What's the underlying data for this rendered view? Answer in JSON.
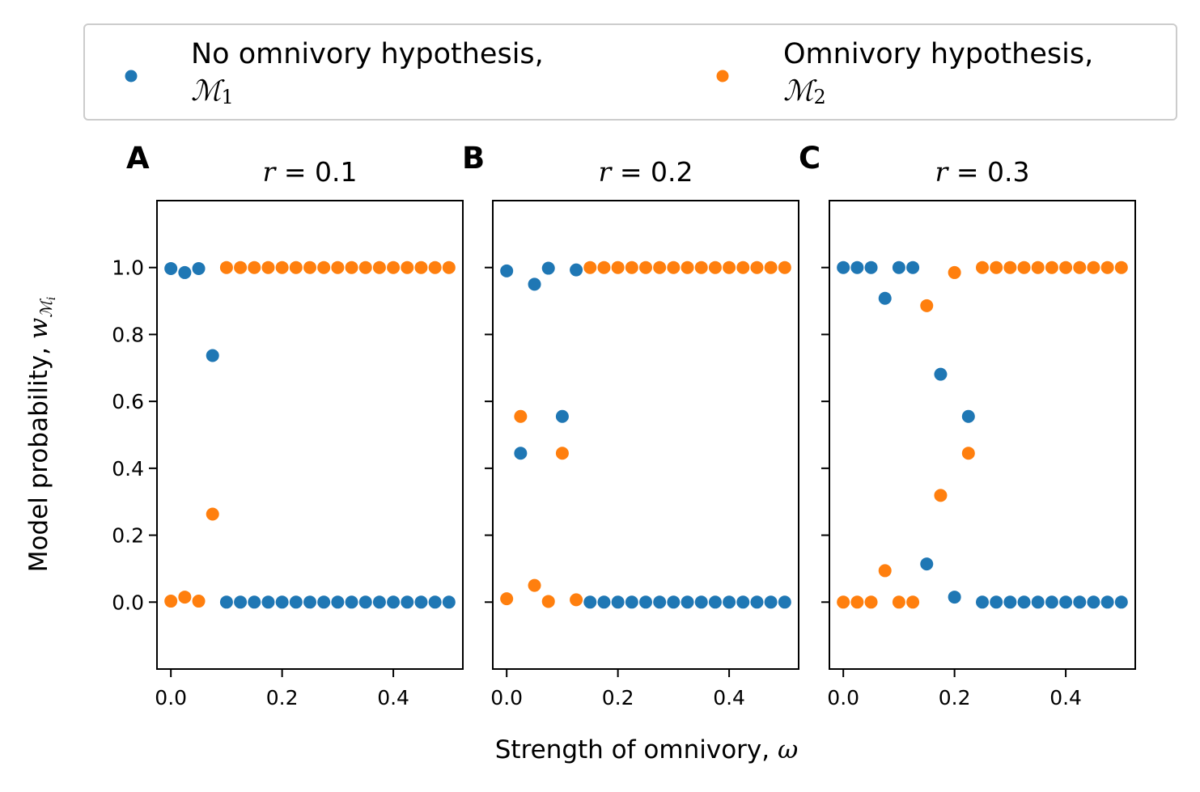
{
  "colors": {
    "m1": "#1f77b4",
    "m2": "#ff7f0e"
  },
  "legend": {
    "placement": "top",
    "entries": [
      {
        "line1": "No omnivory hypothesis,",
        "line2": "ℳ",
        "sub": "1",
        "series": "m1"
      },
      {
        "line1": "Omnivory hypothesis,",
        "line2": "ℳ",
        "sub": "2",
        "series": "m2"
      }
    ]
  },
  "xlabel": {
    "text": "Strength of omnivory, ",
    "symbol": "ω"
  },
  "ylabel": {
    "text": "Model probability, ",
    "symbol": "w",
    "sub": "ℳ",
    "subsub": "i"
  },
  "chart_data": [
    {
      "type": "scatter",
      "panel": "A",
      "title": {
        "lhs": "r",
        "rhs": " = 0.1"
      },
      "xlim": [
        -0.025,
        0.525
      ],
      "ylim": [
        -0.2,
        1.2
      ],
      "x_ticks": [
        "0.0",
        "0.2",
        "0.4"
      ],
      "y_ticks": [
        "0.0",
        "0.2",
        "0.4",
        "0.6",
        "0.8",
        "1.0"
      ],
      "x": [
        0.0,
        0.025,
        0.05,
        0.075,
        0.1,
        0.125,
        0.15,
        0.175,
        0.2,
        0.225,
        0.25,
        0.275,
        0.3,
        0.325,
        0.35,
        0.375,
        0.4,
        0.425,
        0.45,
        0.475,
        0.5
      ],
      "series": [
        {
          "key": "m1",
          "values": [
            0.997,
            0.985,
            0.997,
            0.737,
            0,
            0,
            0,
            0,
            0,
            0,
            0,
            0,
            0,
            0,
            0,
            0,
            0,
            0,
            0,
            0,
            0
          ]
        },
        {
          "key": "m2",
          "values": [
            0.003,
            0.015,
            0.003,
            0.263,
            1,
            1,
            1,
            1,
            1,
            1,
            1,
            1,
            1,
            1,
            1,
            1,
            1,
            1,
            1,
            1,
            1
          ]
        }
      ]
    },
    {
      "type": "scatter",
      "panel": "B",
      "title": {
        "lhs": "r",
        "rhs": " = 0.2"
      },
      "xlim": [
        -0.025,
        0.525
      ],
      "ylim": [
        -0.2,
        1.2
      ],
      "x_ticks": [
        "0.0",
        "0.2",
        "0.4"
      ],
      "y_ticks": [
        "0.0",
        "0.2",
        "0.4",
        "0.6",
        "0.8",
        "1.0"
      ],
      "x": [
        0.0,
        0.025,
        0.05,
        0.075,
        0.1,
        0.125,
        0.15,
        0.175,
        0.2,
        0.225,
        0.25,
        0.275,
        0.3,
        0.325,
        0.35,
        0.375,
        0.4,
        0.425,
        0.45,
        0.475,
        0.5
      ],
      "series": [
        {
          "key": "m1",
          "values": [
            0.99,
            0.445,
            0.95,
            0.998,
            0.555,
            0.993,
            0,
            0,
            0,
            0,
            0,
            0,
            0,
            0,
            0,
            0,
            0,
            0,
            0,
            0,
            0
          ]
        },
        {
          "key": "m2",
          "values": [
            0.01,
            0.555,
            0.05,
            0.002,
            0.445,
            0.007,
            1,
            1,
            1,
            1,
            1,
            1,
            1,
            1,
            1,
            1,
            1,
            1,
            1,
            1,
            1
          ]
        }
      ]
    },
    {
      "type": "scatter",
      "panel": "C",
      "title": {
        "lhs": "r",
        "rhs": " = 0.3"
      },
      "xlim": [
        -0.025,
        0.525
      ],
      "ylim": [
        -0.2,
        1.2
      ],
      "x_ticks": [
        "0.0",
        "0.2",
        "0.4"
      ],
      "y_ticks": [
        "0.0",
        "0.2",
        "0.4",
        "0.6",
        "0.8",
        "1.0"
      ],
      "x": [
        0.0,
        0.025,
        0.05,
        0.075,
        0.1,
        0.125,
        0.15,
        0.175,
        0.2,
        0.225,
        0.25,
        0.275,
        0.3,
        0.325,
        0.35,
        0.375,
        0.4,
        0.425,
        0.45,
        0.475,
        0.5
      ],
      "series": [
        {
          "key": "m1",
          "values": [
            1.0,
            1.0,
            1.0,
            0.908,
            1.0,
            1.0,
            0.114,
            0.681,
            0.015,
            0.555,
            0,
            0,
            0,
            0,
            0,
            0,
            0,
            0,
            0,
            0,
            0
          ]
        },
        {
          "key": "m2",
          "values": [
            0.0,
            0.0,
            0.0,
            0.094,
            0.0,
            0.0,
            0.886,
            0.319,
            0.985,
            0.445,
            1,
            1,
            1,
            1,
            1,
            1,
            1,
            1,
            1,
            1,
            1
          ]
        }
      ]
    }
  ]
}
